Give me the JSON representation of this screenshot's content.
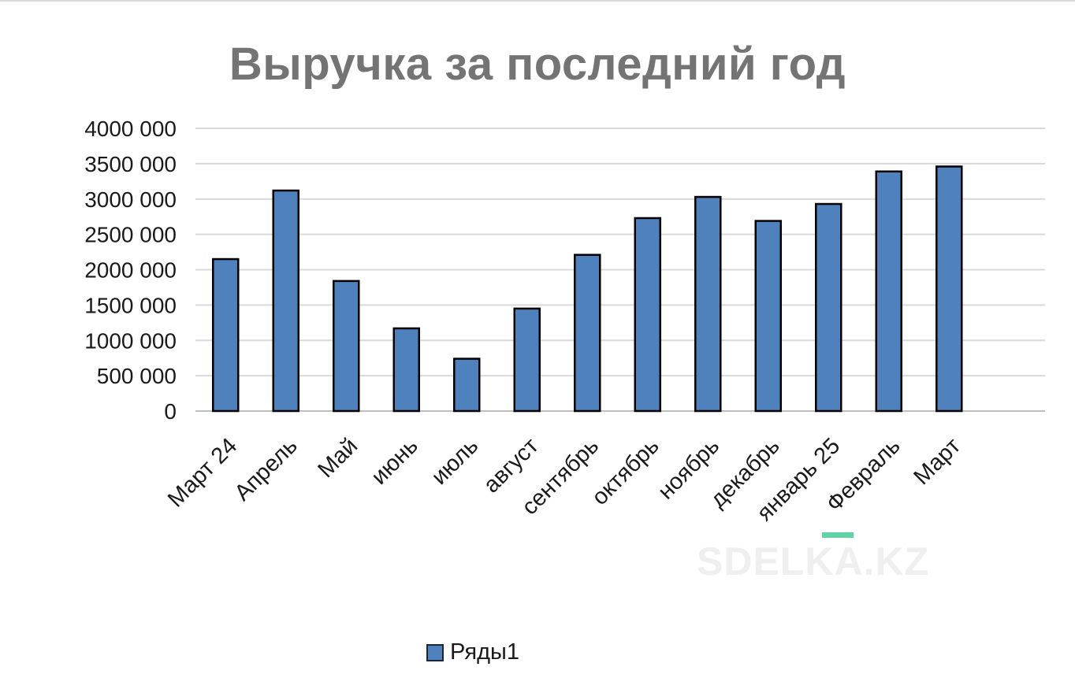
{
  "chart_data": {
    "type": "bar",
    "title": "Выручка за последний год",
    "categories": [
      "Март 24",
      "Апрель",
      "Май",
      "июнь",
      "июль",
      "август",
      "сентябрь",
      "октябрь",
      "ноябрь",
      "декабрь",
      "январь 25",
      "Февраль",
      "Март"
    ],
    "series": [
      {
        "name": "Ряды1",
        "values": [
          2150000,
          3120000,
          1840000,
          1170000,
          740000,
          1450000,
          2210000,
          2730000,
          3030000,
          2690000,
          2930000,
          3390000,
          3460000
        ],
        "color": "#4f81bd"
      }
    ],
    "y_tick_labels": [
      "0",
      "500 000",
      "1000 000",
      "1500 000",
      "2000 000",
      "2500 000",
      "3000 000",
      "3500 000",
      "4000 000"
    ],
    "ylim": [
      0,
      4000000
    ],
    "ystep": 500000,
    "grid": true,
    "legend_position": "bottom",
    "bar_outline_color": "#000000",
    "grid_color": "#d9d9d9",
    "text_color": "#1a1a1a",
    "title_color": "#747474"
  },
  "watermark": "SDELKA.KZ"
}
